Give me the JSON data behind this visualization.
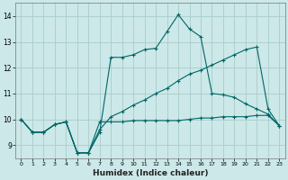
{
  "xlabel": "Humidex (Indice chaleur)",
  "bg_color": "#cce8e8",
  "grid_color": "#aacccc",
  "line_color": "#006666",
  "xlim": [
    -0.5,
    23.5
  ],
  "ylim": [
    8.5,
    14.5
  ],
  "yticks": [
    9,
    10,
    11,
    12,
    13,
    14
  ],
  "xticks": [
    0,
    1,
    2,
    3,
    4,
    5,
    6,
    7,
    8,
    9,
    10,
    11,
    12,
    13,
    14,
    15,
    16,
    17,
    18,
    19,
    20,
    21,
    22,
    23
  ],
  "series": [
    {
      "x": [
        0,
        1,
        2,
        3,
        4,
        5,
        6,
        7,
        8,
        9,
        10,
        11,
        12,
        13,
        14,
        15,
        16,
        17,
        18,
        19,
        20,
        21,
        22,
        23
      ],
      "y": [
        10.0,
        9.5,
        9.5,
        9.8,
        9.9,
        8.7,
        8.7,
        9.9,
        9.9,
        9.9,
        9.95,
        9.95,
        9.95,
        9.95,
        9.95,
        10.0,
        10.05,
        10.05,
        10.1,
        10.1,
        10.1,
        10.15,
        10.15,
        9.75
      ]
    },
    {
      "x": [
        0,
        1,
        2,
        3,
        4,
        5,
        6,
        7,
        8,
        9,
        10,
        11,
        12,
        13,
        14,
        15,
        16,
        17,
        18,
        19,
        20,
        21,
        22,
        23
      ],
      "y": [
        10.0,
        9.5,
        9.5,
        9.8,
        9.9,
        8.7,
        8.7,
        9.6,
        10.1,
        10.3,
        10.55,
        10.75,
        11.0,
        11.2,
        11.5,
        11.75,
        11.9,
        12.1,
        12.3,
        12.5,
        12.7,
        12.8,
        10.4,
        9.75
      ]
    },
    {
      "x": [
        0,
        1,
        2,
        3,
        4,
        5,
        6,
        7,
        8,
        9,
        10,
        11,
        12,
        13,
        14,
        15,
        16,
        17,
        18,
        19,
        20,
        21,
        22,
        23
      ],
      "y": [
        10.0,
        9.5,
        9.5,
        9.8,
        9.9,
        8.7,
        8.7,
        9.5,
        12.4,
        12.4,
        12.5,
        12.7,
        12.75,
        13.4,
        14.05,
        13.5,
        13.2,
        11.0,
        10.95,
        10.85,
        10.6,
        10.4,
        10.2,
        9.75
      ]
    }
  ]
}
